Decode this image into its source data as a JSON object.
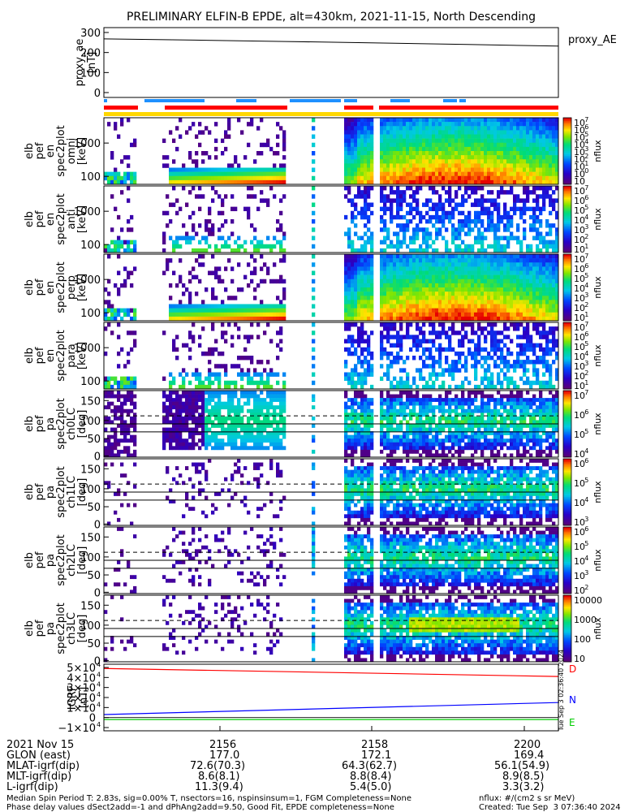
{
  "title": "PRELIMINARY ELFIN-B EPDE, alt=430km, 2021-11-15, North Descending",
  "proxy_ae": {
    "ylabel": [
      "proxy_ae",
      "[nT]"
    ],
    "yticks": [
      "300",
      "200",
      "100",
      "0"
    ],
    "legend": "proxy_AE",
    "values": [
      268,
      262,
      255,
      248,
      240,
      232
    ]
  },
  "panels": [
    {
      "ylabel": [
        "elb",
        "pef",
        "en",
        "spec2plot",
        "omni",
        "[keV]"
      ],
      "yticks": [
        "1000",
        "100"
      ],
      "cbar_ticks": [
        "10",
        "10",
        "10",
        "10",
        "10",
        "10",
        "10",
        "10",
        "10"
      ],
      "cbar_exps": [
        "7",
        "6",
        "5",
        "4",
        "3",
        "2",
        "1",
        "0",
        ""
      ],
      "cbar_label": "nflux",
      "kind": "energy",
      "key": "omni"
    },
    {
      "ylabel": [
        "elb",
        "pef",
        "en",
        "spec2plot",
        "anti",
        "[keV]"
      ],
      "yticks": [
        "1000",
        "100"
      ],
      "cbar_ticks": [
        "10",
        "10",
        "10",
        "10",
        "10",
        "10",
        "10"
      ],
      "cbar_exps": [
        "7",
        "6",
        "5",
        "4",
        "3",
        "2",
        "1"
      ],
      "cbar_label": "nflux",
      "kind": "energy",
      "key": "anti"
    },
    {
      "ylabel": [
        "elb",
        "pef",
        "en",
        "spec2plot",
        "perp",
        "[keV]"
      ],
      "yticks": [
        "1000",
        "100"
      ],
      "cbar_ticks": [
        "10",
        "10",
        "10",
        "10",
        "10",
        "10",
        "10"
      ],
      "cbar_exps": [
        "7",
        "6",
        "5",
        "4",
        "3",
        "2",
        "1"
      ],
      "cbar_label": "nflux",
      "kind": "energy",
      "key": "perp"
    },
    {
      "ylabel": [
        "elb",
        "pef",
        "en",
        "spec2plot",
        "para",
        "[keV]"
      ],
      "yticks": [
        "1000",
        "100"
      ],
      "cbar_ticks": [
        "10",
        "10",
        "10",
        "10",
        "10",
        "10",
        "10"
      ],
      "cbar_exps": [
        "7",
        "6",
        "5",
        "4",
        "3",
        "2",
        "1"
      ],
      "cbar_label": "nflux",
      "kind": "energy",
      "key": "para"
    },
    {
      "ylabel": [
        "elb",
        "pef",
        "pa",
        "spec2plot",
        "ch0LC",
        "[deg]"
      ],
      "yticks": [
        "150",
        "100",
        "50",
        "0"
      ],
      "cbar_ticks": [
        "10",
        "10",
        "10",
        "10"
      ],
      "cbar_exps": [
        "7",
        "6",
        "5",
        "4"
      ],
      "cbar_label": "nflux",
      "kind": "pa",
      "key": "ch0"
    },
    {
      "ylabel": [
        "elb",
        "pef",
        "pa",
        "spec2plot",
        "ch1LC",
        "[deg]"
      ],
      "yticks": [
        "150",
        "100",
        "50",
        "0"
      ],
      "cbar_ticks": [
        "10",
        "10",
        "10",
        "10"
      ],
      "cbar_exps": [
        "6",
        "5",
        "4",
        "3"
      ],
      "cbar_label": "nflux",
      "kind": "pa",
      "key": "ch1"
    },
    {
      "ylabel": [
        "elb",
        "pef",
        "pa",
        "spec2plot",
        "ch2LC",
        "[deg]"
      ],
      "yticks": [
        "150",
        "100",
        "50",
        "0"
      ],
      "cbar_ticks": [
        "10",
        "10",
        "10",
        "10",
        "10"
      ],
      "cbar_exps": [
        "6",
        "5",
        "4",
        "3",
        "2"
      ],
      "cbar_label": "nflux",
      "kind": "pa",
      "key": "ch2"
    },
    {
      "ylabel": [
        "elb",
        "pef",
        "pa",
        "spec2plot",
        "ch3LC",
        "[deg]"
      ],
      "yticks": [
        "150",
        "100",
        "50",
        "0"
      ],
      "cbar_ticks": [
        "10000",
        "1000",
        "100",
        "10"
      ],
      "cbar_exps": [
        "",
        "",
        "",
        ""
      ],
      "cbar_label": "nflux",
      "kind": "pa",
      "key": "ch3"
    }
  ],
  "igrf": {
    "ylabel": [
      "IGRF",
      "[nT]"
    ],
    "yticks": [
      "5×10",
      "4×10",
      "3×10",
      "2×10",
      "1×10",
      "0",
      "−1×10"
    ],
    "yexps": [
      "4",
      "4",
      "4",
      "4",
      "4",
      "",
      "4"
    ],
    "components": [
      {
        "name": "D",
        "color": "#ff0000"
      },
      {
        "name": "N",
        "color": "#0000ff"
      },
      {
        "name": "E",
        "color": "#00cc00"
      }
    ],
    "side_text": "Tue Sep  3 02:36:40 2024"
  },
  "chart_data": {
    "type": "heatmap",
    "title": "PRELIMINARY ELFIN-B EPDE, alt=430km, 2021-11-15, North Descending",
    "x_ticks": [
      "2156",
      "2158",
      "2200"
    ],
    "proxy_ae": {
      "ylim": [
        0,
        300
      ],
      "values": [
        268,
        262,
        255,
        248,
        240,
        232
      ]
    },
    "igrf": {
      "ylim": [
        -10000,
        50000
      ],
      "D": [
        49000,
        41000
      ],
      "N": [
        3000,
        15000
      ],
      "E": [
        -2000,
        -2000
      ]
    },
    "colormap": "rainbow"
  },
  "ephemeris": {
    "labels": [
      "2021 Nov 15",
      "GLON (east)",
      "MLAT-igrf(dip)",
      "MLT-igrf(dip)",
      "L-igrf(dip)"
    ],
    "columns": [
      {
        "time": "2156",
        "values": [
          "177.0",
          "72.6(70.3)",
          "8.6(8.1)",
          "11.3(9.4)"
        ]
      },
      {
        "time": "2158",
        "values": [
          "172.1",
          "64.3(62.7)",
          "8.8(8.4)",
          "5.4(5.0)"
        ]
      },
      {
        "time": "2200",
        "values": [
          "169.4",
          "56.1(54.9)",
          "8.9(8.5)",
          "3.3(3.2)"
        ]
      }
    ]
  },
  "footer": {
    "line1": "Median Spin Period T: 2.83s, sig=0.00% T, nsectors=16, nspinsinsum=1, FGM Completeness=None",
    "line2": "Phase delay values dSect2add=-1 and dPhAng2add=9.50, Good Fit, EPDE completeness=None",
    "units": "nflux: #/(cm2 s sr MeV)",
    "created": "Created: Tue Sep  3 07:36:40 2024"
  }
}
